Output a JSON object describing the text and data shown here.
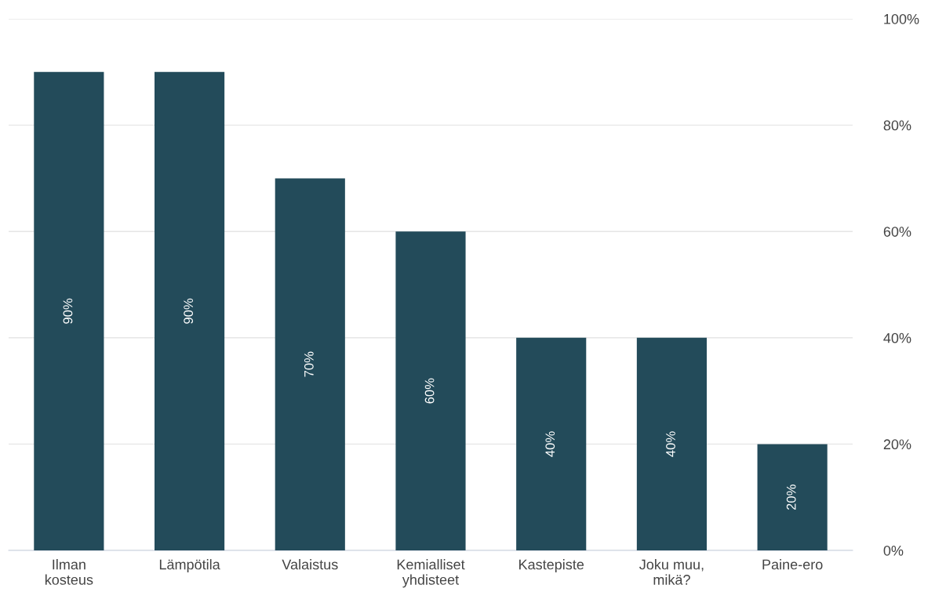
{
  "chart_data": {
    "type": "bar",
    "categories": [
      "Ilman\nkosteus",
      "Lämpötila",
      "Valaistus",
      "Kemialliset\nyhdisteet",
      "Kastepiste",
      "Joku muu,\nmikä?",
      "Paine-ero"
    ],
    "values": [
      90,
      90,
      70,
      60,
      40,
      40,
      20
    ],
    "value_labels": [
      "90%",
      "90%",
      "70%",
      "60%",
      "40%",
      "40%",
      "20%"
    ],
    "color": "#234b5a",
    "ylim": [
      0,
      100
    ],
    "yticks": [
      {
        "value": 0,
        "label": "0%"
      },
      {
        "value": 20,
        "label": "20%"
      },
      {
        "value": 40,
        "label": "40%"
      },
      {
        "value": 60,
        "label": "60%"
      },
      {
        "value": 80,
        "label": "80%"
      },
      {
        "value": 100,
        "label": "100%"
      }
    ],
    "grid": "y"
  }
}
